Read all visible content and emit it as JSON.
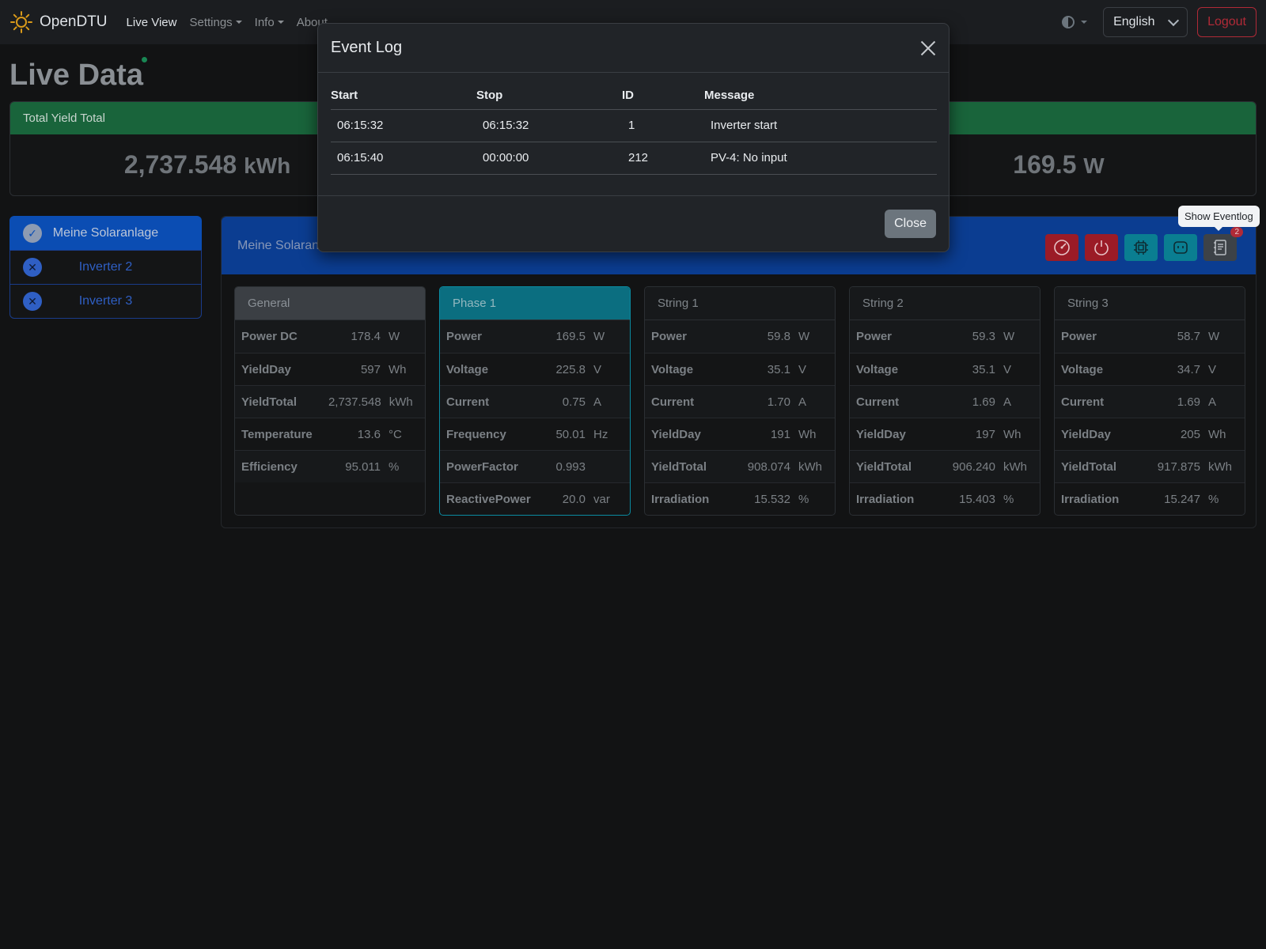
{
  "navbar": {
    "brand": "OpenDTU",
    "links": [
      {
        "label": "Live View"
      },
      {
        "label": "Settings"
      },
      {
        "label": "Info"
      },
      {
        "label": "About"
      }
    ],
    "language": "English",
    "logout": "Logout"
  },
  "page": {
    "title": "Live Data"
  },
  "totals": {
    "yield_total_header": "Total Yield Total",
    "yield_total_value": "2,737.548",
    "yield_total_unit": "kWh",
    "power_value": "169.5",
    "power_unit": "W"
  },
  "inverters": [
    {
      "name": "Meine Solaranlage",
      "status": "ok"
    },
    {
      "name": "Inverter 2",
      "status": "error"
    },
    {
      "name": "Inverter 3",
      "status": "error"
    }
  ],
  "panel": {
    "header_name": "Meine Solaran"
  },
  "tooltip": "Show Eventlog",
  "eventlog_badge": "2",
  "cards": {
    "general": {
      "title": "General",
      "rows": [
        {
          "k": "Power DC",
          "v": "178.4",
          "u": "W"
        },
        {
          "k": "YieldDay",
          "v": "597",
          "u": "Wh"
        },
        {
          "k": "YieldTotal",
          "v": "2,737.548",
          "u": "kWh"
        },
        {
          "k": "Temperature",
          "v": "13.6",
          "u": "°C"
        },
        {
          "k": "Efficiency",
          "v": "95.011",
          "u": "%"
        }
      ]
    },
    "phase1": {
      "title": "Phase 1",
      "rows": [
        {
          "k": "Power",
          "v": "169.5",
          "u": "W"
        },
        {
          "k": "Voltage",
          "v": "225.8",
          "u": "V"
        },
        {
          "k": "Current",
          "v": "0.75",
          "u": "A"
        },
        {
          "k": "Frequency",
          "v": "50.01",
          "u": "Hz"
        },
        {
          "k": "PowerFactor",
          "v": "0.993",
          "u": ""
        },
        {
          "k": "ReactivePower",
          "v": "20.0",
          "u": "var"
        }
      ]
    },
    "string1": {
      "title": "String 1",
      "rows": [
        {
          "k": "Power",
          "v": "59.8",
          "u": "W"
        },
        {
          "k": "Voltage",
          "v": "35.1",
          "u": "V"
        },
        {
          "k": "Current",
          "v": "1.70",
          "u": "A"
        },
        {
          "k": "YieldDay",
          "v": "191",
          "u": "Wh"
        },
        {
          "k": "YieldTotal",
          "v": "908.074",
          "u": "kWh"
        },
        {
          "k": "Irradiation",
          "v": "15.532",
          "u": "%"
        }
      ]
    },
    "string2": {
      "title": "String 2",
      "rows": [
        {
          "k": "Power",
          "v": "59.3",
          "u": "W"
        },
        {
          "k": "Voltage",
          "v": "35.1",
          "u": "V"
        },
        {
          "k": "Current",
          "v": "1.69",
          "u": "A"
        },
        {
          "k": "YieldDay",
          "v": "197",
          "u": "Wh"
        },
        {
          "k": "YieldTotal",
          "v": "906.240",
          "u": "kWh"
        },
        {
          "k": "Irradiation",
          "v": "15.403",
          "u": "%"
        }
      ]
    },
    "string3": {
      "title": "String 3",
      "rows": [
        {
          "k": "Power",
          "v": "58.7",
          "u": "W"
        },
        {
          "k": "Voltage",
          "v": "34.7",
          "u": "V"
        },
        {
          "k": "Current",
          "v": "1.69",
          "u": "A"
        },
        {
          "k": "YieldDay",
          "v": "205",
          "u": "Wh"
        },
        {
          "k": "YieldTotal",
          "v": "917.875",
          "u": "kWh"
        },
        {
          "k": "Irradiation",
          "v": "15.247",
          "u": "%"
        }
      ]
    }
  },
  "modal": {
    "title": "Event Log",
    "columns": [
      "Start",
      "Stop",
      "ID",
      "Message"
    ],
    "rows": [
      {
        "start": "06:15:32",
        "stop": "06:15:32",
        "id": "1",
        "message": "Inverter start"
      },
      {
        "start": "06:15:40",
        "stop": "00:00:00",
        "id": "212",
        "message": "PV-4: No input"
      }
    ],
    "close_label": "Close"
  },
  "colors": {
    "navbar_bg": "#1b1d20",
    "total_header": "#19643b",
    "inverter_header": "#0b3d91",
    "active_inverter": "#0b4db3",
    "phase_header": "#0b6e80",
    "danger": "#b02a37"
  }
}
